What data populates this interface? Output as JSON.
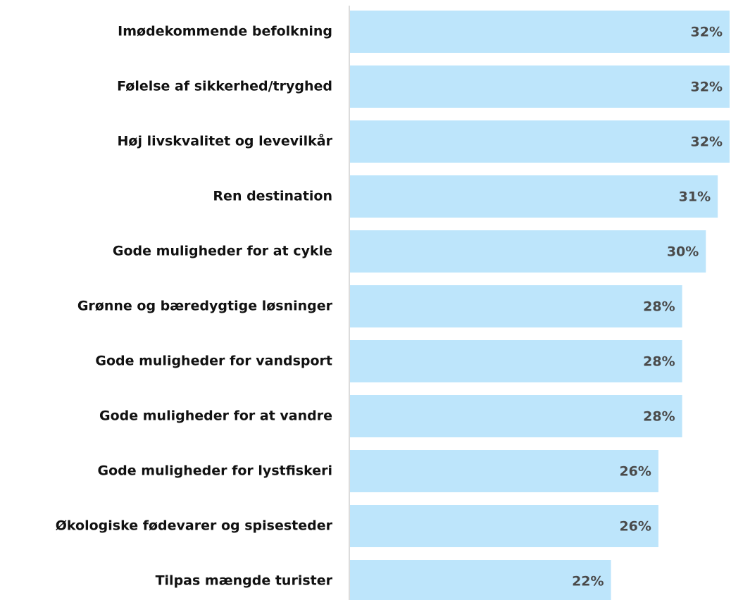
{
  "chart_data": {
    "type": "bar",
    "orientation": "horizontal",
    "categories": [
      "Imødekommende befolkning",
      "Følelse af sikkerhed/tryghed",
      "Høj livskvalitet og levevilkår",
      "Ren destination",
      "Gode muligheder for at cykle",
      "Grønne og bæredygtige løsninger",
      "Gode muligheder for vandsport",
      "Gode muligheder for at vandre",
      "Gode muligheder for lystfiskeri",
      "Økologiske fødevarer og spisesteder",
      "Tilpas mængde turister"
    ],
    "values": [
      32,
      32,
      32,
      31,
      30,
      28,
      28,
      28,
      26,
      26,
      22
    ],
    "value_labels": [
      "32%",
      "32%",
      "32%",
      "31%",
      "30%",
      "28%",
      "28%",
      "28%",
      "26%",
      "26%",
      "22%"
    ],
    "color": "#bde5fb",
    "xlim": [
      0,
      32
    ]
  }
}
